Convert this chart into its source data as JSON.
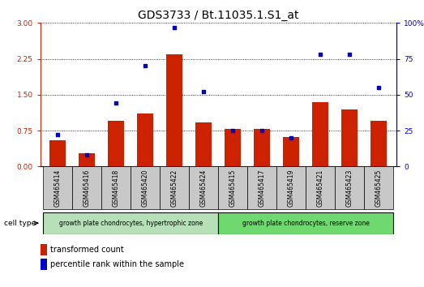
{
  "title": "GDS3733 / Bt.11035.1.S1_at",
  "samples": [
    "GSM465414",
    "GSM465416",
    "GSM465418",
    "GSM465420",
    "GSM465422",
    "GSM465424",
    "GSM465415",
    "GSM465417",
    "GSM465419",
    "GSM465421",
    "GSM465423",
    "GSM465425"
  ],
  "transformed_count": [
    0.55,
    0.28,
    0.95,
    1.1,
    2.35,
    0.92,
    0.78,
    0.78,
    0.62,
    1.35,
    1.2,
    0.95
  ],
  "percentile_rank": [
    22,
    8,
    44,
    70,
    97,
    52,
    25,
    25,
    20,
    78,
    78,
    55
  ],
  "group1_count": 6,
  "group1_label": "growth plate chondrocytes, hypertrophic zone",
  "group2_label": "growth plate chondrocytes, reserve zone",
  "cell_type_label": "cell type",
  "legend1": "transformed count",
  "legend2": "percentile rank within the sample",
  "bar_color": "#cc2200",
  "dot_color": "#0000cc",
  "ylim_left": [
    0,
    3
  ],
  "ylim_right": [
    0,
    100
  ],
  "yticks_left": [
    0,
    0.75,
    1.5,
    2.25,
    3
  ],
  "yticks_right": [
    0,
    25,
    50,
    75,
    100
  ],
  "group1_bg": "#b8e0b8",
  "group2_bg": "#6fd86f",
  "sample_bg": "#c8c8c8",
  "title_fontsize": 10,
  "tick_fontsize": 6.5,
  "label_fontsize": 7
}
